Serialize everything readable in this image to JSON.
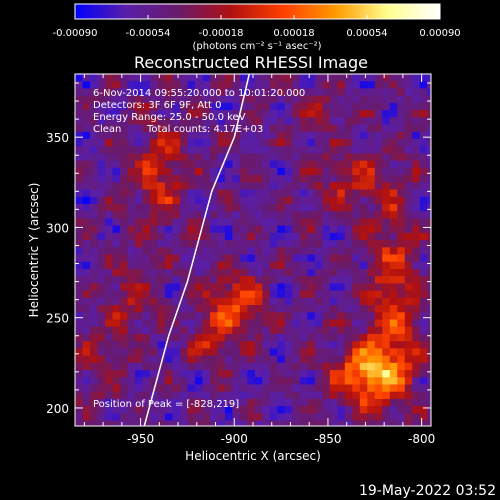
{
  "chart_data": {
    "type": "heatmap",
    "title": "Reconstructed RHESSI Image",
    "xlabel": "Heliocentric X (arcsec)",
    "ylabel": "Heliocentric Y (arcsec)",
    "xlim": [
      -985,
      -795
    ],
    "ylim": [
      190,
      385
    ],
    "x_ticks": [
      -950,
      -900,
      -850,
      -800
    ],
    "x_tick_labels": [
      "-950",
      "-900",
      "-850",
      "-800"
    ],
    "y_ticks": [
      200,
      250,
      300,
      350
    ],
    "y_tick_labels": [
      "200",
      "250",
      "300",
      "350"
    ],
    "colorbar": {
      "unit_label": "(photons cm⁻² s⁻¹ asec⁻²)",
      "range": [
        -0.0009,
        0.0009
      ],
      "ticks": [
        -0.0009,
        -0.00054,
        -0.00018,
        0.00018,
        0.00054,
        0.0009
      ],
      "tick_labels": [
        "-0.00090",
        "-0.00054",
        "-0.00018",
        "0.00018",
        "0.00054",
        "0.00090"
      ],
      "colormap": [
        "#0000ff",
        "#5a1fa8",
        "#6a1a6a",
        "#b01010",
        "#ff4000",
        "#ff9a00",
        "#ffff90",
        "#ffffff"
      ]
    },
    "annotations": {
      "time_range": "6-Nov-2014 09:55:20.000 to 10:01:20.000",
      "detectors": "Detectors: 3F 6F 9F, Att 0",
      "energy_range": "Energy Range: 25.0 - 50.0 keV",
      "algorithm": "Clean",
      "total_counts": "Total counts: 4.17E+03",
      "peak_position": "Position of Peak = [-828,219]"
    },
    "peak": [
      -828,
      219
    ],
    "limb_curve": [
      [
        -948,
        190
      ],
      [
        -935,
        240
      ],
      [
        -925,
        270
      ],
      [
        -912,
        320
      ],
      [
        -900,
        350
      ],
      [
        -892,
        385
      ]
    ],
    "emission_regions": [
      {
        "x": -940,
        "y": 330,
        "sx": 10,
        "sy": 22,
        "amp": 0.00045
      },
      {
        "x": -955,
        "y": 260,
        "sx": 9,
        "sy": 15,
        "amp": 0.0003
      },
      {
        "x": -900,
        "y": 258,
        "sx": 11,
        "sy": 11,
        "amp": 0.00065
      },
      {
        "x": -913,
        "y": 236,
        "sx": 9,
        "sy": 9,
        "amp": 0.00035
      },
      {
        "x": -828,
        "y": 219,
        "sx": 13,
        "sy": 12,
        "amp": 0.0009
      },
      {
        "x": -815,
        "y": 262,
        "sx": 10,
        "sy": 38,
        "amp": 0.0005
      },
      {
        "x": -838,
        "y": 325,
        "sx": 15,
        "sy": 12,
        "amp": 0.00035
      },
      {
        "x": -856,
        "y": 365,
        "sx": 12,
        "sy": 9,
        "amp": 0.0002
      },
      {
        "x": -972,
        "y": 225,
        "sx": 9,
        "sy": 14,
        "amp": 0.00025
      }
    ]
  },
  "footer": {
    "date_stamp": "19-May-2022 03:52"
  }
}
